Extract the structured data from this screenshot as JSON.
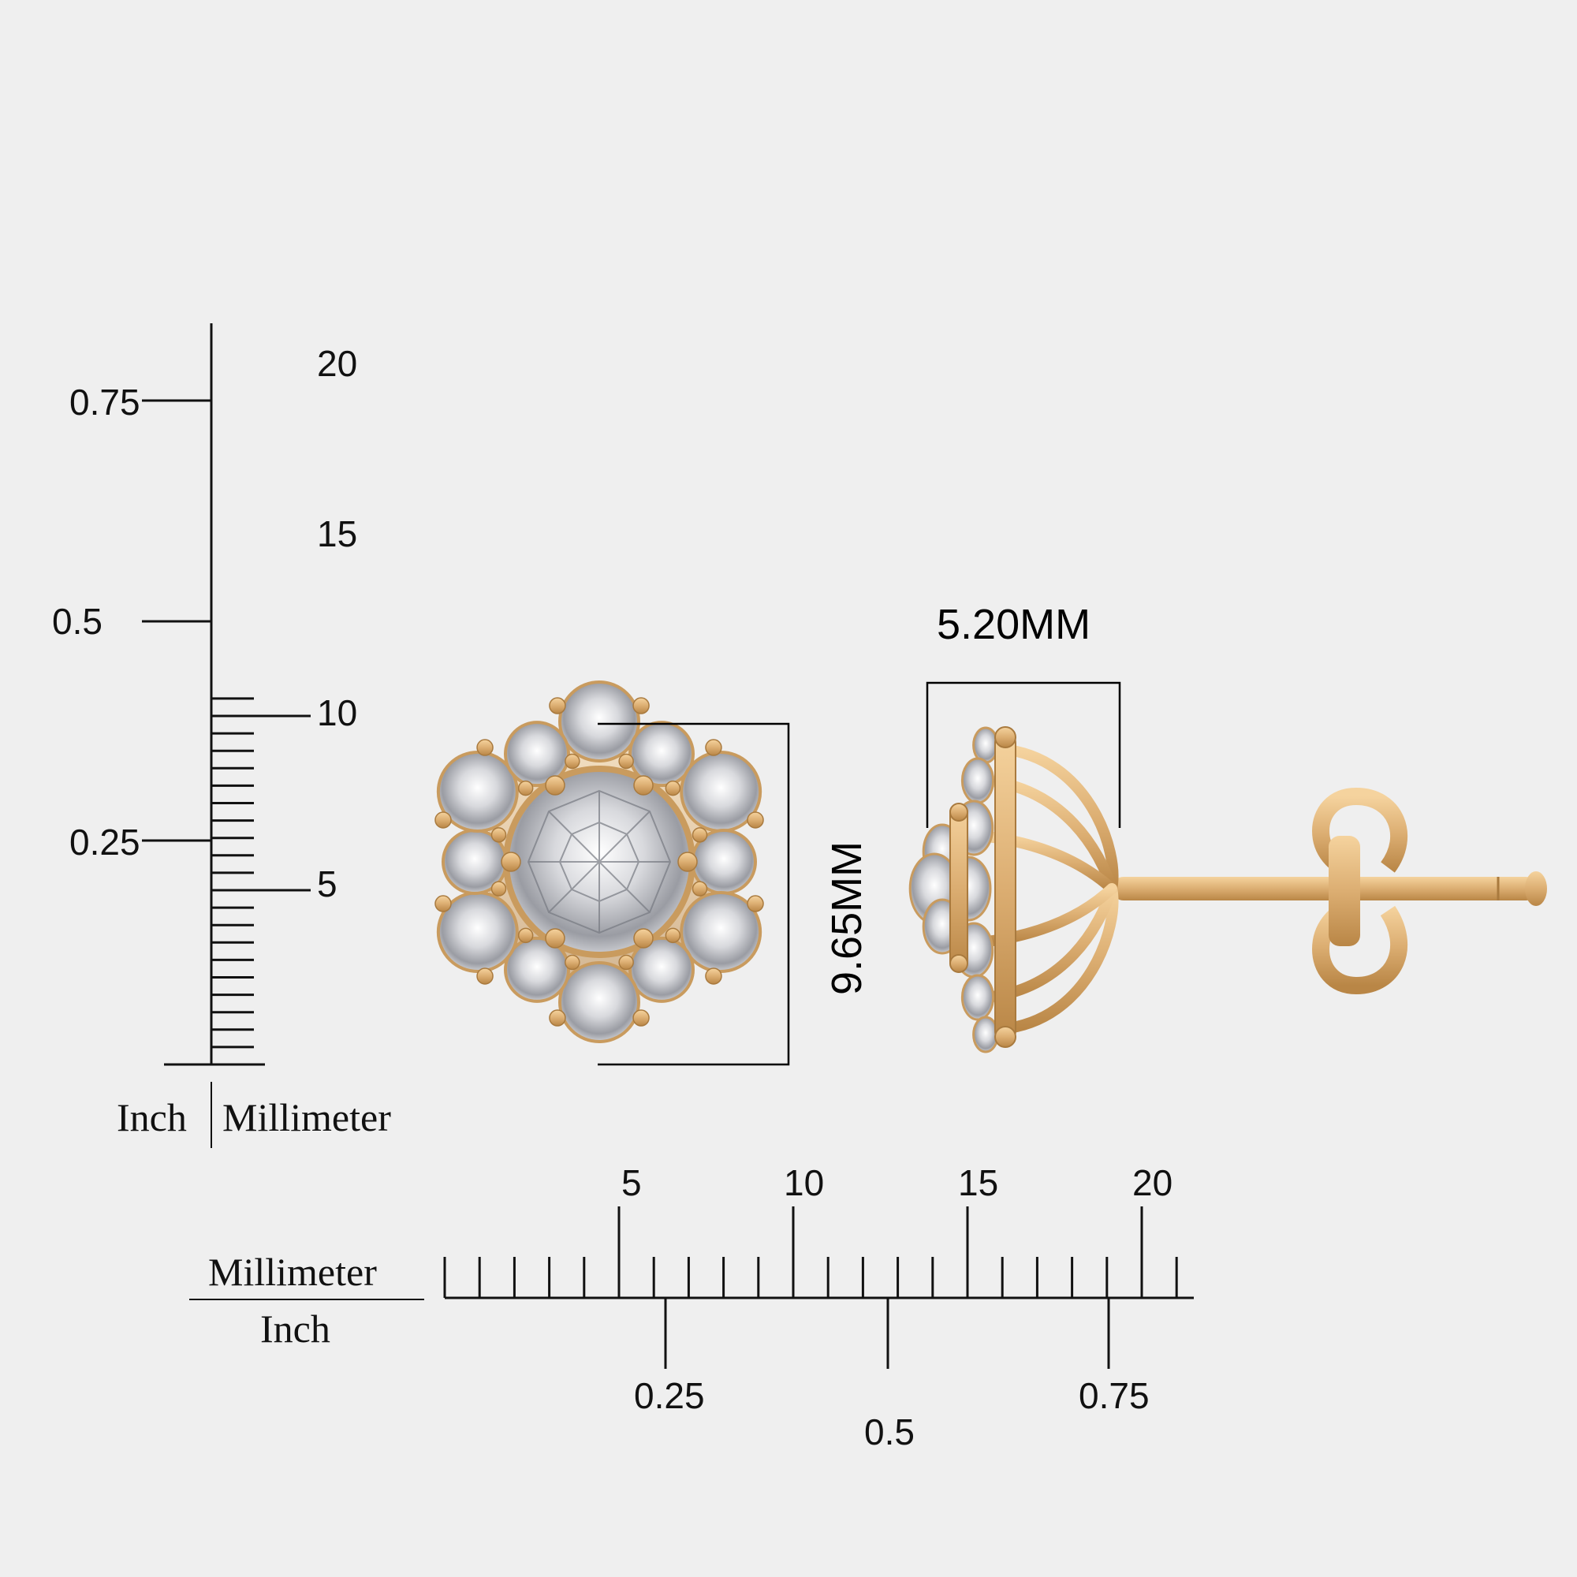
{
  "vertical_ruler": {
    "mm_labels": [
      "5",
      "10",
      "15",
      "20"
    ],
    "inch_labels": [
      "0.25",
      "0.5",
      "0.75"
    ],
    "unit_inch": "Inch",
    "unit_mm": "Millimeter"
  },
  "horizontal_ruler": {
    "mm_labels": [
      "5",
      "10",
      "15",
      "20"
    ],
    "inch_labels": [
      "0.25",
      "0.5",
      "0.75"
    ],
    "unit_mm": "Millimeter",
    "unit_inch": "Inch"
  },
  "dimensions": {
    "height": "9.65MM",
    "width": "5.20MM"
  },
  "colors": {
    "background": "#efefef",
    "gold": "#e0b47a",
    "gold_dark": "#b88648",
    "diamond": "#dcdde0",
    "diamond_dark": "#8e9097",
    "ink": "#111111"
  }
}
